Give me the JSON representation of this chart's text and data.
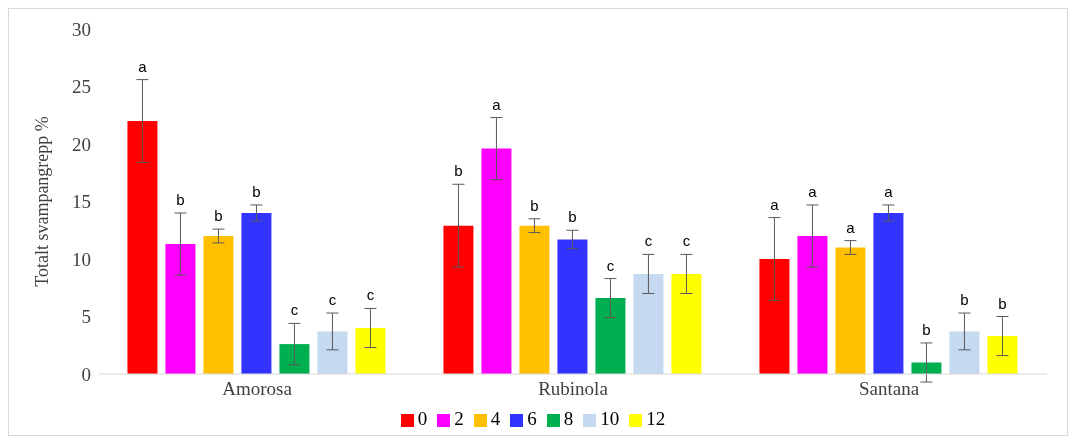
{
  "chart_data": {
    "type": "bar",
    "ylabel": "Totalt svampangrepp %",
    "categories": [
      "Amorosa",
      "Rubinola",
      "Santana"
    ],
    "series": [
      {
        "name": "0",
        "color": "#ff0000",
        "values": [
          22.0,
          12.9,
          10.0
        ],
        "errors": [
          3.6,
          3.6,
          3.6
        ],
        "value_labels": [
          "a",
          "b",
          "a"
        ]
      },
      {
        "name": "2",
        "color": "#ff00ff",
        "values": [
          11.3,
          19.6,
          12.0
        ],
        "errors": [
          2.7,
          2.7,
          2.7
        ],
        "value_labels": [
          "b",
          "a",
          "a"
        ]
      },
      {
        "name": "4",
        "color": "#ffc000",
        "values": [
          12.0,
          12.9,
          11.0
        ],
        "errors": [
          0.6,
          0.6,
          0.6
        ],
        "value_labels": [
          "b",
          "b",
          "a"
        ]
      },
      {
        "name": "6",
        "color": "#3333ff",
        "values": [
          14.0,
          11.7,
          14.0
        ],
        "errors": [
          0.7,
          0.8,
          0.7
        ],
        "value_labels": [
          "b",
          "b",
          "a"
        ]
      },
      {
        "name": "8",
        "color": "#00b050",
        "values": [
          2.6,
          6.6,
          1.0
        ],
        "errors": [
          1.8,
          1.7,
          1.7
        ],
        "value_labels": [
          "c",
          "c",
          "b"
        ]
      },
      {
        "name": "10",
        "color": "#c5d9f1",
        "values": [
          3.7,
          8.7,
          3.7
        ],
        "errors": [
          1.6,
          1.7,
          1.6
        ],
        "value_labels": [
          "c",
          "c",
          "b"
        ]
      },
      {
        "name": "12",
        "color": "#ffff00",
        "values": [
          4.0,
          8.7,
          3.3
        ],
        "errors": [
          1.7,
          1.7,
          1.7
        ],
        "value_labels": [
          "c",
          "c",
          "b"
        ]
      }
    ],
    "ylim": [
      0,
      30
    ],
    "yticks": [
      0,
      5,
      10,
      15,
      20,
      25,
      30
    ],
    "grid": false,
    "legend": "bottom"
  }
}
